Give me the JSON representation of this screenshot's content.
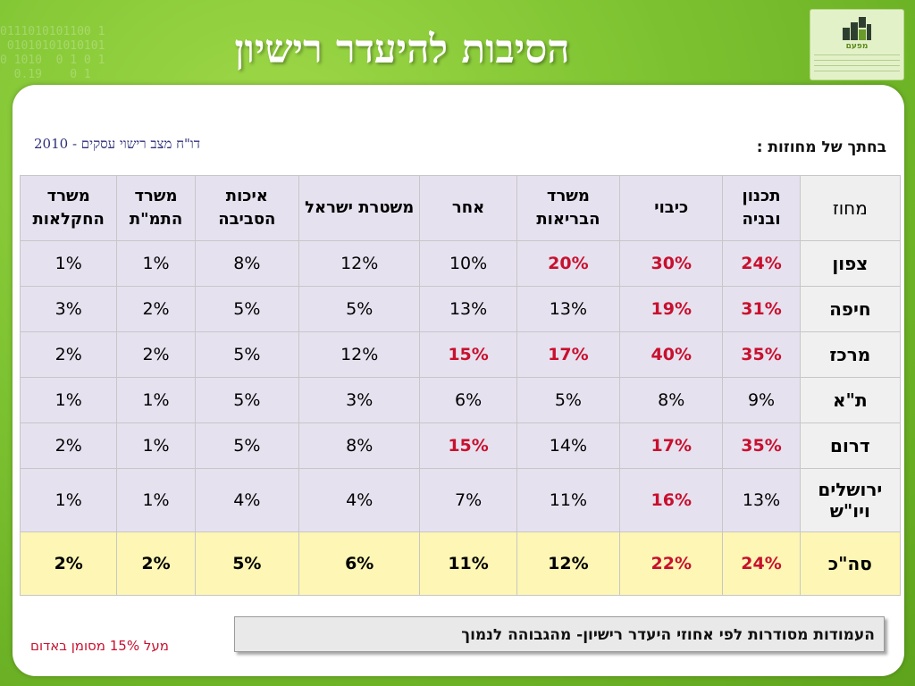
{
  "slide": {
    "title": "הסיבות להיעדר רישיון",
    "report_title": "דו\"ח מצב רישוי עסקים - 2010",
    "section_label": "בחתך של מחוזות :"
  },
  "logo": {
    "brand": "מפעם"
  },
  "table": {
    "headers": [
      "מחוז",
      "תכנון ובניה",
      "כיבוי",
      "משרד הבריאות",
      "אחר",
      "משטרת ישראל",
      "איכות הסביבה",
      "משרד התמ\"ת",
      "משרד החקלאות"
    ],
    "rows": [
      {
        "name": "צפון",
        "values": [
          "24%",
          "30%",
          "20%",
          "10%",
          "12%",
          "8%",
          "1%",
          "1%"
        ],
        "highlight": [
          true,
          true,
          true,
          false,
          false,
          false,
          false,
          false
        ]
      },
      {
        "name": "חיפה",
        "values": [
          "31%",
          "19%",
          "13%",
          "13%",
          "5%",
          "5%",
          "2%",
          "3%"
        ],
        "highlight": [
          true,
          true,
          false,
          false,
          false,
          false,
          false,
          false
        ]
      },
      {
        "name": "מרכז",
        "values": [
          "35%",
          "40%",
          "17%",
          "15%",
          "12%",
          "5%",
          "2%",
          "2%"
        ],
        "highlight": [
          true,
          true,
          true,
          true,
          false,
          false,
          false,
          false
        ]
      },
      {
        "name": "ת\"א",
        "values": [
          "9%",
          "8%",
          "5%",
          "6%",
          "3%",
          "5%",
          "1%",
          "1%"
        ],
        "highlight": [
          false,
          false,
          false,
          false,
          false,
          false,
          false,
          false
        ]
      },
      {
        "name": "דרום",
        "values": [
          "35%",
          "17%",
          "14%",
          "15%",
          "8%",
          "5%",
          "1%",
          "2%"
        ],
        "highlight": [
          true,
          true,
          false,
          true,
          false,
          false,
          false,
          false
        ]
      },
      {
        "name": "ירושלים ויו\"ש",
        "values": [
          "13%",
          "16%",
          "11%",
          "7%",
          "4%",
          "4%",
          "1%",
          "1%"
        ],
        "highlight": [
          false,
          true,
          false,
          false,
          false,
          false,
          false,
          false
        ]
      },
      {
        "name": "סה\"כ",
        "values": [
          "24%",
          "22%",
          "12%",
          "11%",
          "6%",
          "5%",
          "2%",
          "2%"
        ],
        "highlight": [
          true,
          true,
          false,
          false,
          false,
          false,
          false,
          false
        ]
      }
    ]
  },
  "footer": {
    "note": "העמודות מסודרות לפי אחוזי היעדר רישיון- מהגבוהה לנמוך",
    "red_note": "מעל 15% מסומן באדום"
  },
  "colors": {
    "background": "#7cc230",
    "highlight": "#c8102e",
    "cell": "#e6e1ef",
    "total_row": "#fdf6b4"
  }
}
